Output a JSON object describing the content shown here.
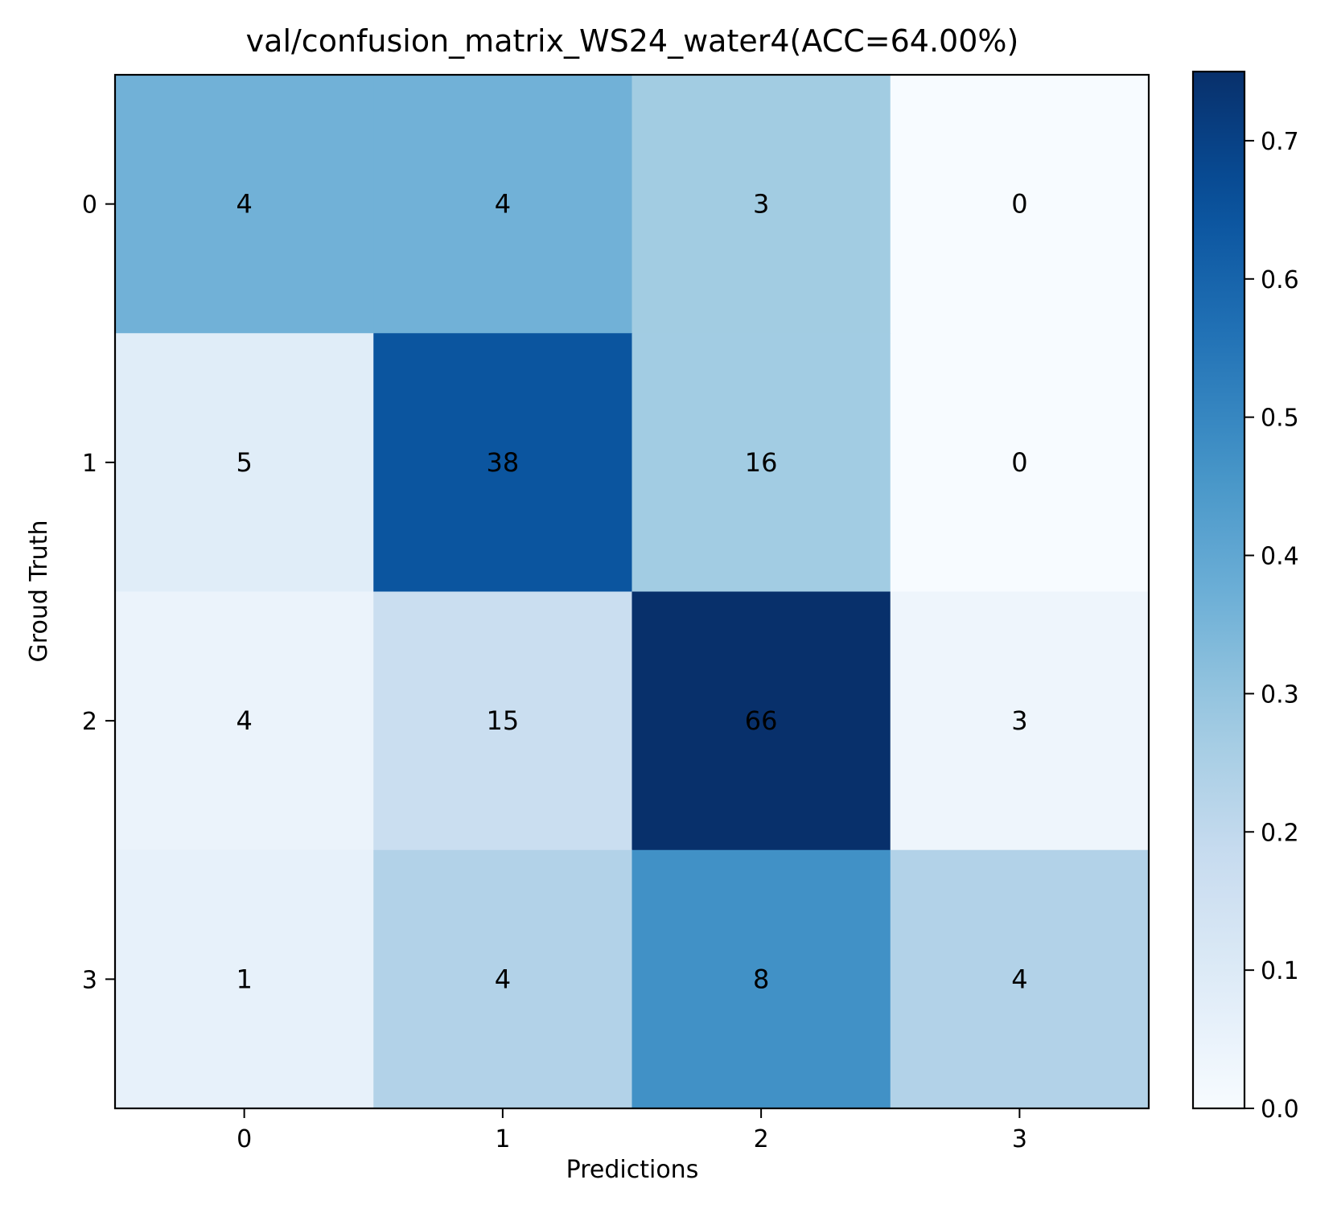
{
  "chart_data": {
    "type": "heatmap",
    "title": "val/confusion_matrix_WS24_water4(ACC=64.00%)",
    "xlabel": "Predictions",
    "ylabel": "Groud Truth",
    "x_categories": [
      "0",
      "1",
      "2",
      "3"
    ],
    "y_categories": [
      "0",
      "1",
      "2",
      "3"
    ],
    "counts": [
      [
        4,
        4,
        3,
        0
      ],
      [
        5,
        38,
        16,
        0
      ],
      [
        4,
        15,
        66,
        3
      ],
      [
        1,
        4,
        8,
        4
      ]
    ],
    "normalized": [
      [
        0.3636,
        0.3636,
        0.2727,
        0.0
      ],
      [
        0.0847,
        0.6441,
        0.2712,
        0.0
      ],
      [
        0.0455,
        0.1705,
        0.75,
        0.0341
      ],
      [
        0.0588,
        0.2353,
        0.4706,
        0.2353
      ]
    ],
    "colormap": "Blues",
    "colorbar": {
      "range": [
        0.0,
        0.75
      ],
      "ticks": [
        0.0,
        0.1,
        0.2,
        0.3,
        0.4,
        0.5,
        0.6,
        0.7
      ],
      "tick_labels": [
        "0.0",
        "0.1",
        "0.2",
        "0.3",
        "0.4",
        "0.5",
        "0.6",
        "0.7"
      ]
    },
    "grid": false,
    "legend": "none"
  }
}
